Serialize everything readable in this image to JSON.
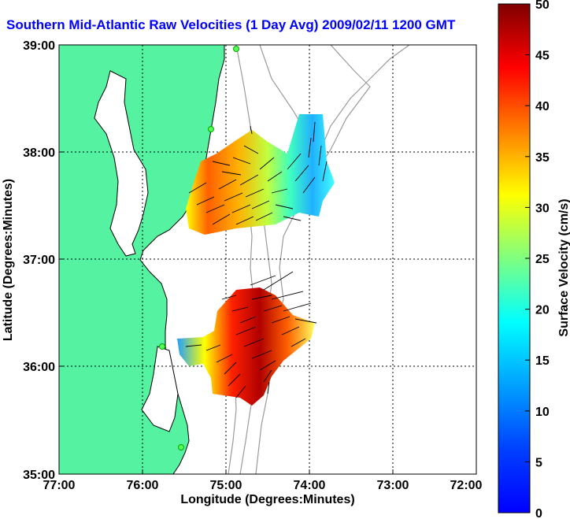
{
  "title": "Southern Mid-Atlantic Raw Velocities (1 Day Avg) 2009/02/11 1200 GMT",
  "map": {
    "xlabel": "Longitude (Degrees:Minutes)",
    "ylabel": "Latitude (Degrees:Minutes)",
    "x_ticks": [
      "77:00",
      "76:00",
      "75:00",
      "74:00",
      "73:00",
      "72:00"
    ],
    "y_ticks": [
      "39:00",
      "38:00",
      "37:00",
      "36:00",
      "35:00"
    ],
    "lon_range": [
      -77,
      -72
    ],
    "lat_range": [
      35,
      39
    ],
    "land_color": "#55f2a2",
    "water_color": "#ffffff",
    "grid": "dotted"
  },
  "colorbar": {
    "label": "Surface Velocity (cm/s)",
    "ticks": [
      "0",
      "5",
      "10",
      "15",
      "20",
      "25",
      "30",
      "35",
      "40",
      "45",
      "50"
    ],
    "range": [
      0,
      50
    ],
    "colormap": "jet"
  }
}
